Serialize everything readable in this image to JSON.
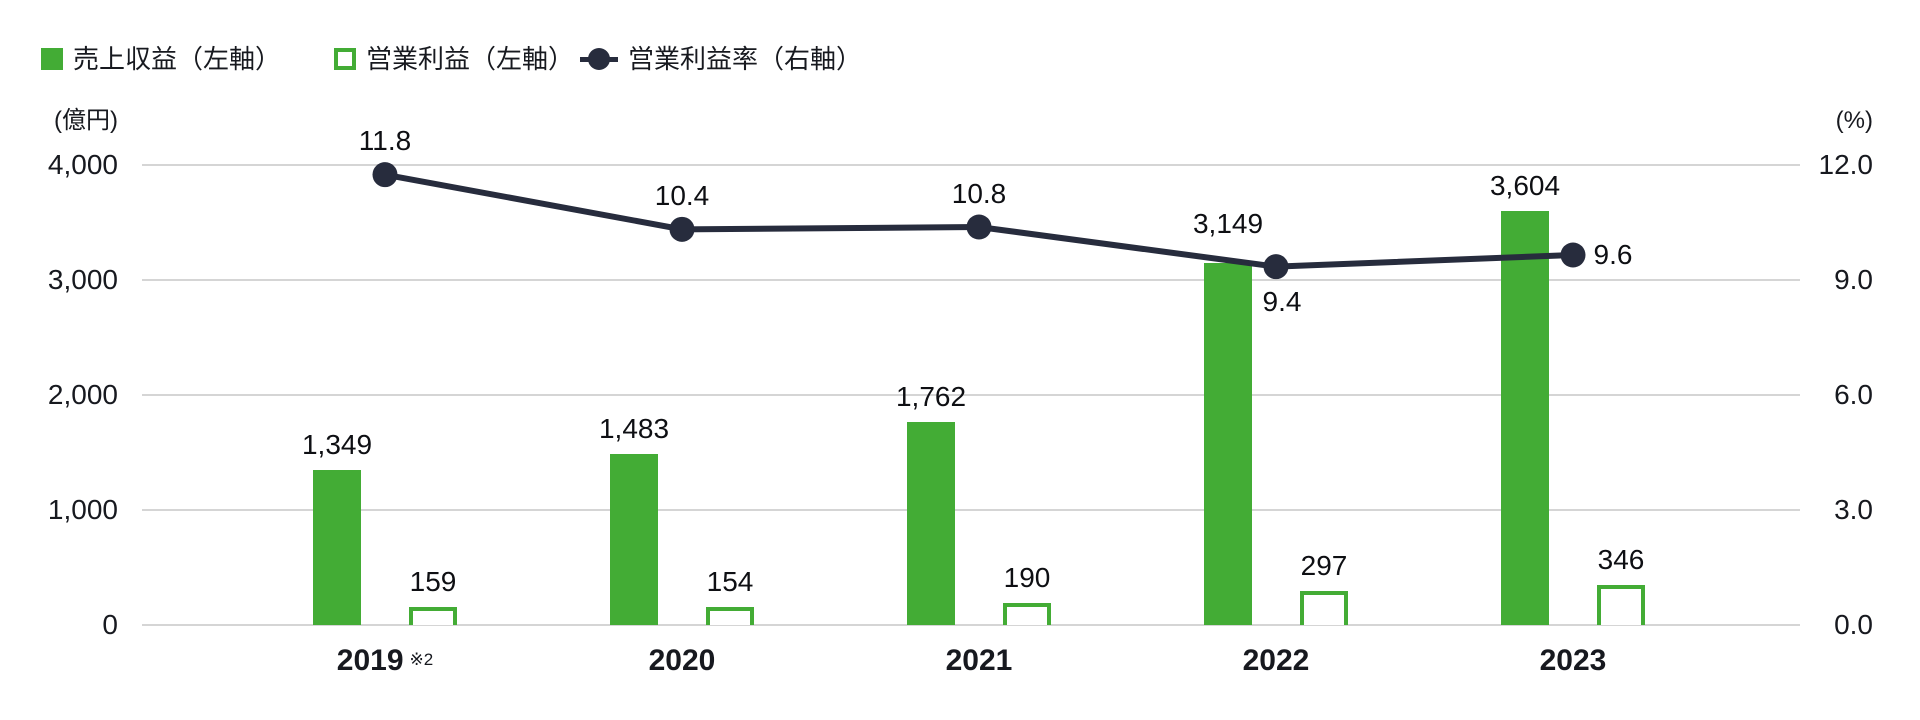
{
  "legend": [
    {
      "label": "売上収益（左軸）",
      "marker": "filled-square-icon",
      "color": "#43AC35"
    },
    {
      "label": "営業利益（左軸）",
      "marker": "outlined-square-icon",
      "color": "#43AC35"
    },
    {
      "label": "営業利益率（右軸）",
      "marker": "line-dot-icon",
      "color": "#272C3D"
    }
  ],
  "chart_data": {
    "type": "combo-bar-line",
    "categories": [
      "2019",
      "2020",
      "2021",
      "2022",
      "2023"
    ],
    "category_notes": [
      "※2",
      "",
      "",
      "",
      ""
    ],
    "left_axis": {
      "unit": "(億円)",
      "ticks": [
        "0",
        "1,000",
        "2,000",
        "3,000",
        "4,000"
      ],
      "tick_values": [
        0,
        1000,
        2000,
        3000,
        4000
      ],
      "min": 0,
      "max": 4000,
      "grid": true
    },
    "right_axis": {
      "unit": "(%)",
      "ticks": [
        "0.0",
        "3.0",
        "6.0",
        "9.0",
        "12.0"
      ],
      "min": 0,
      "max": 12
    },
    "series": [
      {
        "name": "売上収益（左軸）",
        "type": "bar",
        "fill": "solid",
        "axis": "left",
        "color": "#43AC35",
        "values": [
          1349,
          1483,
          1762,
          3149,
          3604
        ],
        "value_labels": [
          "1,349",
          "1,483",
          "1,762",
          "3,149",
          "3,604"
        ]
      },
      {
        "name": "営業利益（左軸）",
        "type": "bar",
        "fill": "outline",
        "axis": "left",
        "color": "#43AC35",
        "values": [
          159,
          154,
          190,
          297,
          346
        ],
        "value_labels": [
          "159",
          "154",
          "190",
          "297",
          "346"
        ]
      },
      {
        "name": "営業利益率（右軸）",
        "type": "line",
        "axis": "right",
        "color": "#272C3D",
        "values": [
          11.8,
          10.4,
          10.8,
          9.4,
          9.6
        ],
        "value_labels": [
          "11.8",
          "10.4",
          "10.8",
          "9.4",
          "9.6"
        ],
        "label_positions": [
          "above",
          "above",
          "above",
          "below",
          "right"
        ]
      }
    ],
    "legend_position": "top-left",
    "grid": "horizontal-only"
  }
}
